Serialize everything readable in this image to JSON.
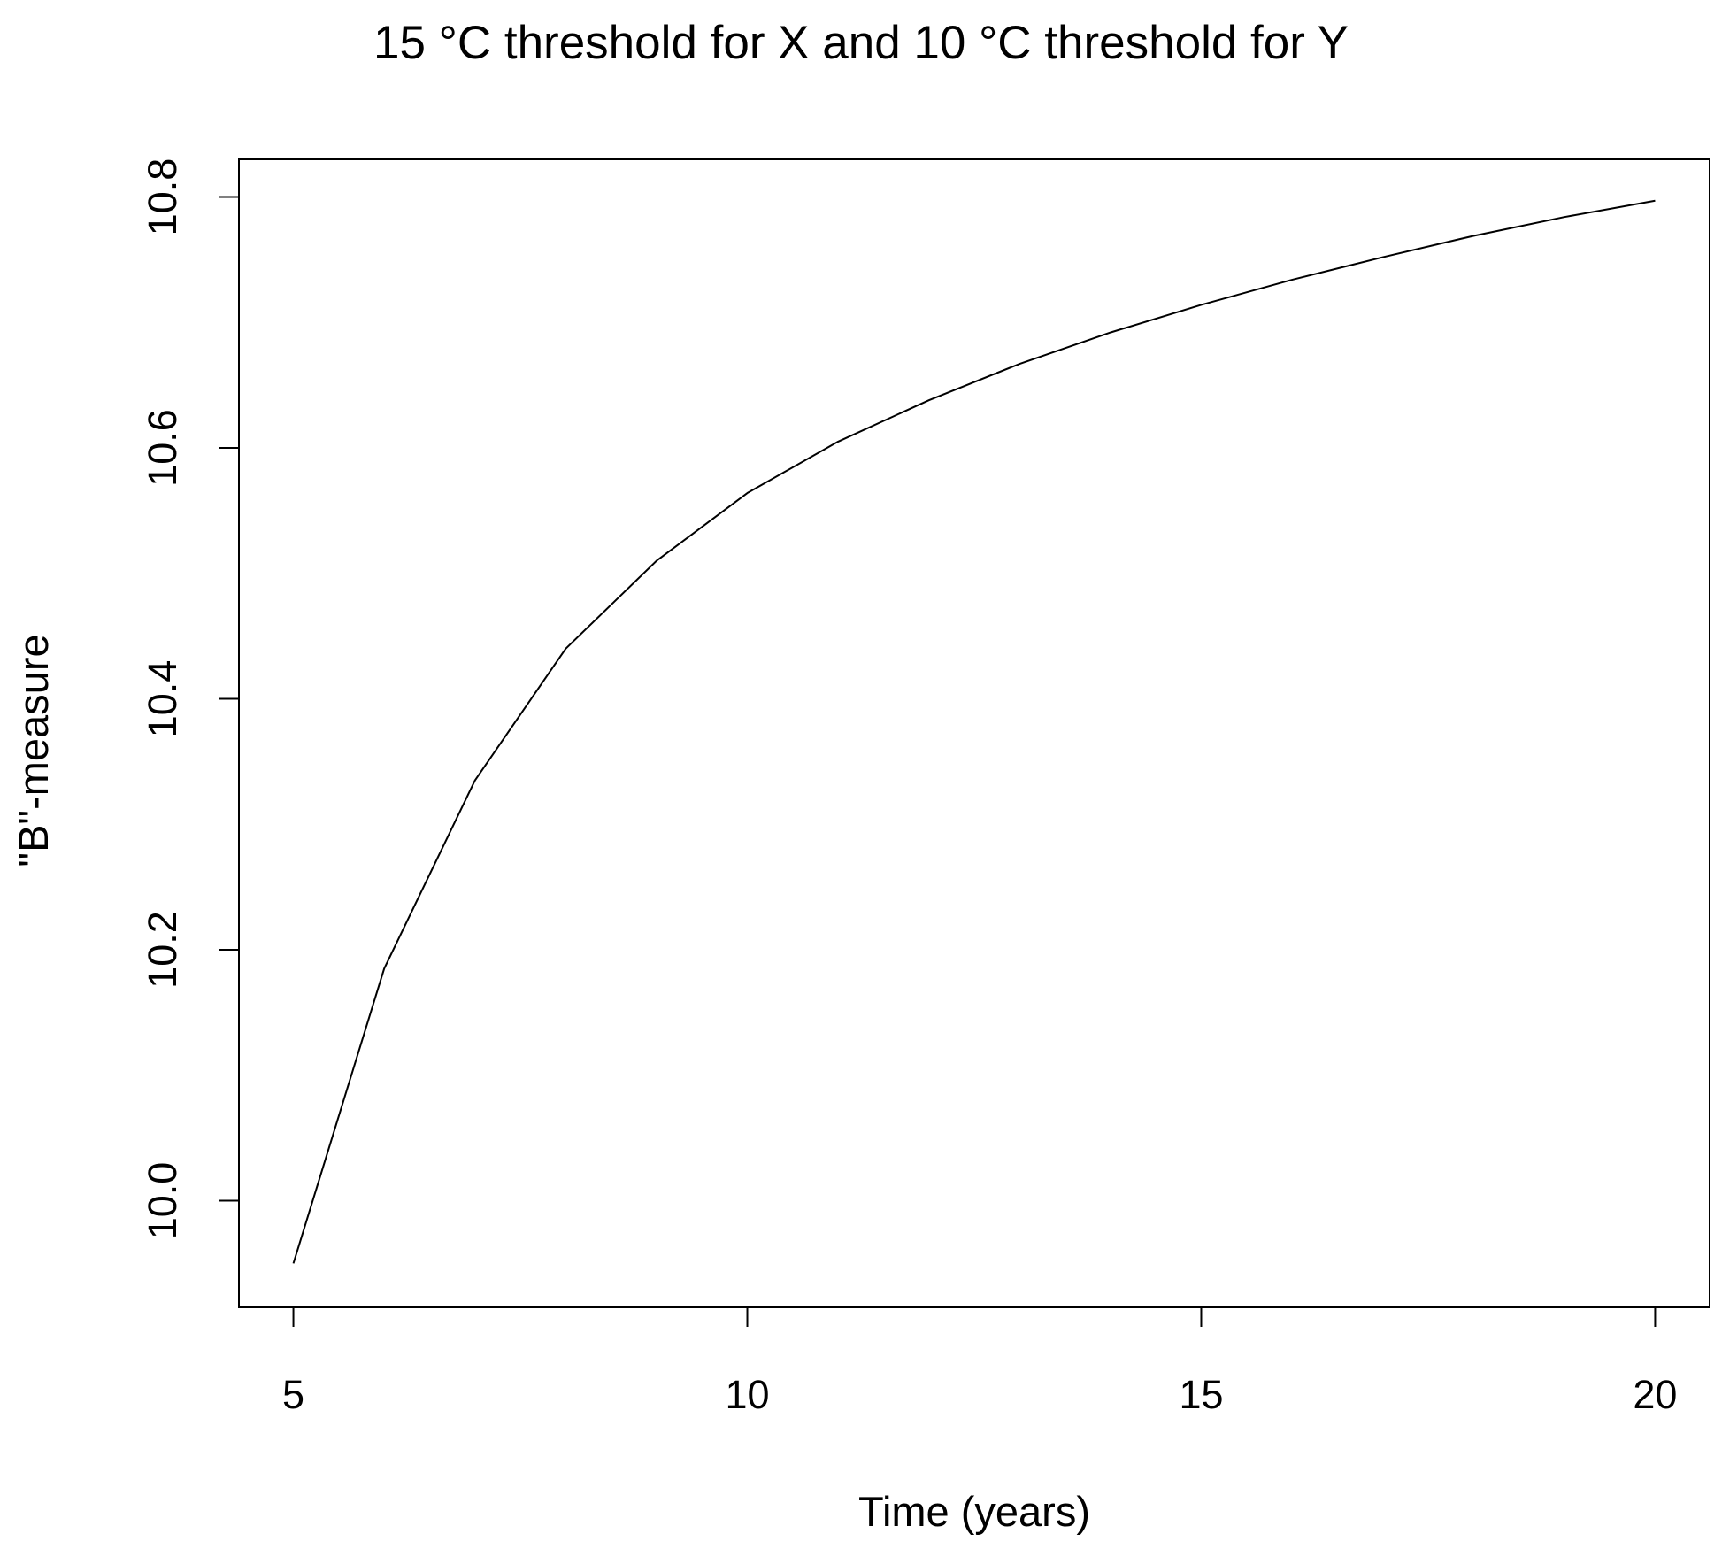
{
  "chart_data": {
    "type": "line",
    "title": "15 °C threshold for X and  10 °C threshold for Y",
    "xlabel": "Time (years)",
    "ylabel": "\"B\"-measure",
    "xlim": [
      4.4,
      20.6
    ],
    "ylim": [
      9.915,
      10.83
    ],
    "x_ticks": [
      5,
      10,
      15,
      20
    ],
    "x_tick_labels": [
      "5",
      "10",
      "15",
      "20"
    ],
    "y_ticks": [
      10.0,
      10.2,
      10.4,
      10.6,
      10.8
    ],
    "y_tick_labels": [
      "10.0",
      "10.2",
      "10.4",
      "10.6",
      "10.8"
    ],
    "grid": false,
    "series": [
      {
        "x": [
          5,
          6,
          7,
          8,
          9,
          10,
          11,
          12,
          13,
          14,
          15,
          16,
          17,
          18,
          19,
          20
        ],
        "values": [
          9.95,
          10.185,
          10.335,
          10.44,
          10.51,
          10.564,
          10.605,
          10.638,
          10.667,
          10.692,
          10.714,
          10.734,
          10.752,
          10.769,
          10.784,
          10.797
        ]
      }
    ],
    "colors": {
      "line": "#000000",
      "frame": "#000000",
      "background": "#ffffff"
    }
  }
}
